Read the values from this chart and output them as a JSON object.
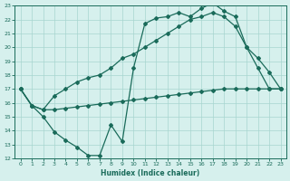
{
  "xlabel": "Humidex (Indice chaleur)",
  "xlim": [
    -0.5,
    23.5
  ],
  "ylim": [
    12,
    23
  ],
  "xticks": [
    0,
    1,
    2,
    3,
    4,
    5,
    6,
    7,
    8,
    9,
    10,
    11,
    12,
    13,
    14,
    15,
    16,
    17,
    18,
    19,
    20,
    21,
    22,
    23
  ],
  "yticks": [
    12,
    13,
    14,
    15,
    16,
    17,
    18,
    19,
    20,
    21,
    22,
    23
  ],
  "line_color": "#1a6b5a",
  "bg_color": "#d6f0ed",
  "grid_color": "#a8d5cf",
  "line1_x": [
    0,
    1,
    2,
    3,
    4,
    5,
    6,
    7,
    8,
    9,
    10,
    11,
    12,
    13,
    14,
    15,
    16,
    17,
    18,
    19,
    20,
    21,
    22,
    23
  ],
  "line1_y": [
    17,
    15.8,
    15.0,
    13.9,
    13.3,
    12.8,
    12.2,
    12.2,
    14.4,
    13.2,
    18.5,
    21.7,
    22.1,
    22.2,
    22.5,
    22.2,
    22.8,
    23.2,
    22.6,
    22.2,
    20.0,
    18.5,
    17.0,
    17.0
  ],
  "line2_x": [
    0,
    1,
    2,
    3,
    4,
    5,
    6,
    7,
    8,
    9,
    10,
    11,
    12,
    13,
    14,
    15,
    16,
    17,
    18,
    19,
    20,
    21,
    22,
    23
  ],
  "line2_y": [
    17.0,
    15.8,
    15.5,
    16.5,
    17.0,
    17.5,
    17.8,
    18.0,
    18.5,
    19.2,
    19.5,
    20.0,
    20.5,
    21.0,
    21.5,
    22.0,
    22.2,
    22.5,
    22.2,
    21.5,
    20.0,
    19.2,
    18.2,
    17.0
  ],
  "line3_x": [
    0,
    1,
    2,
    3,
    4,
    5,
    6,
    7,
    8,
    9,
    10,
    11,
    12,
    13,
    14,
    15,
    16,
    17,
    18,
    19,
    20,
    21,
    22,
    23
  ],
  "line3_y": [
    17.0,
    15.8,
    15.5,
    15.5,
    15.6,
    15.7,
    15.8,
    15.9,
    16.0,
    16.1,
    16.2,
    16.3,
    16.4,
    16.5,
    16.6,
    16.7,
    16.8,
    16.9,
    17.0,
    17.0,
    17.0,
    17.0,
    17.0,
    17.0
  ]
}
